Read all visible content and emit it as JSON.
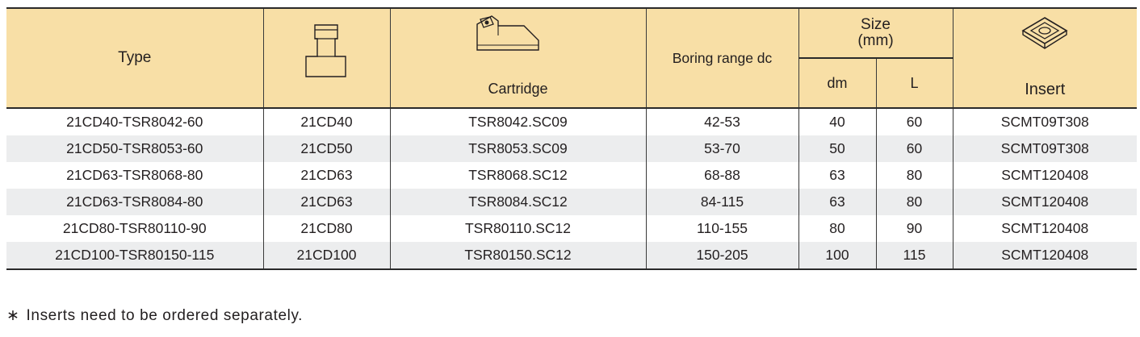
{
  "header": {
    "type": "Type",
    "cartridge": "Cartridge",
    "boring_range": "Boring range dc",
    "size_line1": "Size",
    "size_line2": "(mm)",
    "dm": "dm",
    "L": "L",
    "insert": "Insert"
  },
  "rows": [
    {
      "type": "21CD40-TSR8042-60",
      "holder": "21CD40",
      "cartridge": "TSR8042.SC09",
      "range": "42-53",
      "dm": "40",
      "L": "60",
      "insert": "SCMT09T308"
    },
    {
      "type": "21CD50-TSR8053-60",
      "holder": "21CD50",
      "cartridge": "TSR8053.SC09",
      "range": "53-70",
      "dm": "50",
      "L": "60",
      "insert": "SCMT09T308"
    },
    {
      "type": "21CD63-TSR8068-80",
      "holder": "21CD63",
      "cartridge": "TSR8068.SC12",
      "range": "68-88",
      "dm": "63",
      "L": "80",
      "insert": "SCMT120408"
    },
    {
      "type": "21CD63-TSR8084-80",
      "holder": "21CD63",
      "cartridge": "TSR8084.SC12",
      "range": "84-115",
      "dm": "63",
      "L": "80",
      "insert": "SCMT120408"
    },
    {
      "type": "21CD80-TSR80110-90",
      "holder": "21CD80",
      "cartridge": "TSR80110.SC12",
      "range": "110-155",
      "dm": "80",
      "L": "90",
      "insert": "SCMT120408"
    },
    {
      "type": "21CD100-TSR80150-115",
      "holder": "21CD100",
      "cartridge": "TSR80150.SC12",
      "range": "150-205",
      "dm": "100",
      "L": "115",
      "insert": "SCMT120408"
    }
  ],
  "footnote": {
    "star": "∗",
    "text": "Inserts need to be ordered separately."
  }
}
